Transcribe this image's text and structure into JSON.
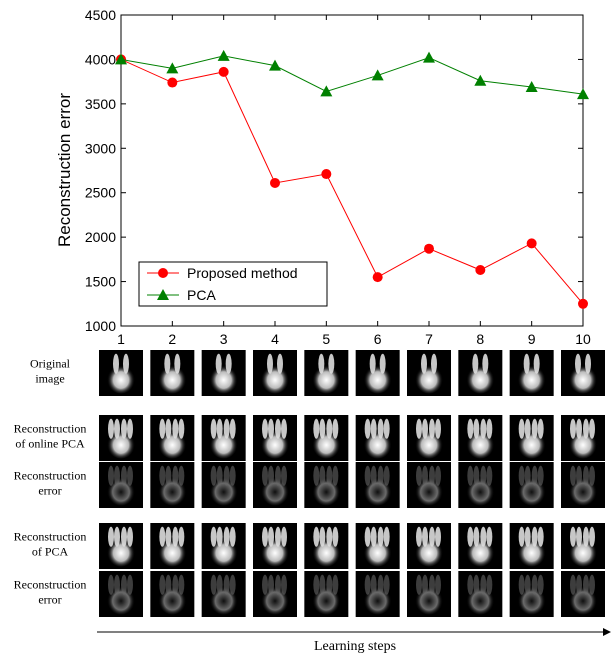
{
  "chart_data": {
    "type": "line",
    "ylabel": "Reconstruction error",
    "x": [
      1,
      2,
      3,
      4,
      5,
      6,
      7,
      8,
      9,
      10
    ],
    "series": [
      {
        "name": "Proposed method",
        "color": "#ff0000",
        "marker": "circle",
        "values": [
          4000,
          3740,
          3860,
          2610,
          2710,
          1550,
          1870,
          1630,
          1930,
          1250
        ]
      },
      {
        "name": "PCA",
        "color": "#008000",
        "marker": "triangle",
        "values": [
          4000,
          3900,
          4040,
          3930,
          3640,
          3820,
          4020,
          3760,
          3690,
          3610
        ]
      }
    ],
    "xlim": [
      1,
      10
    ],
    "xticks": [
      1,
      2,
      3,
      4,
      5,
      6,
      7,
      8,
      9,
      10
    ],
    "ylim": [
      1000,
      4500
    ],
    "yticks": [
      1000,
      1500,
      2000,
      2500,
      3000,
      3500,
      4000,
      4500
    ],
    "grid": false,
    "legend": "lower left"
  },
  "panel": {
    "rows": [
      [
        "Original",
        "image"
      ],
      [
        "Reconstruction",
        "of online PCA"
      ],
      [
        "Reconstruction",
        "error"
      ],
      [
        "Reconstruction",
        "of PCA"
      ],
      [
        "Reconstruction",
        "error"
      ]
    ],
    "arrow_label": "Learning steps"
  }
}
